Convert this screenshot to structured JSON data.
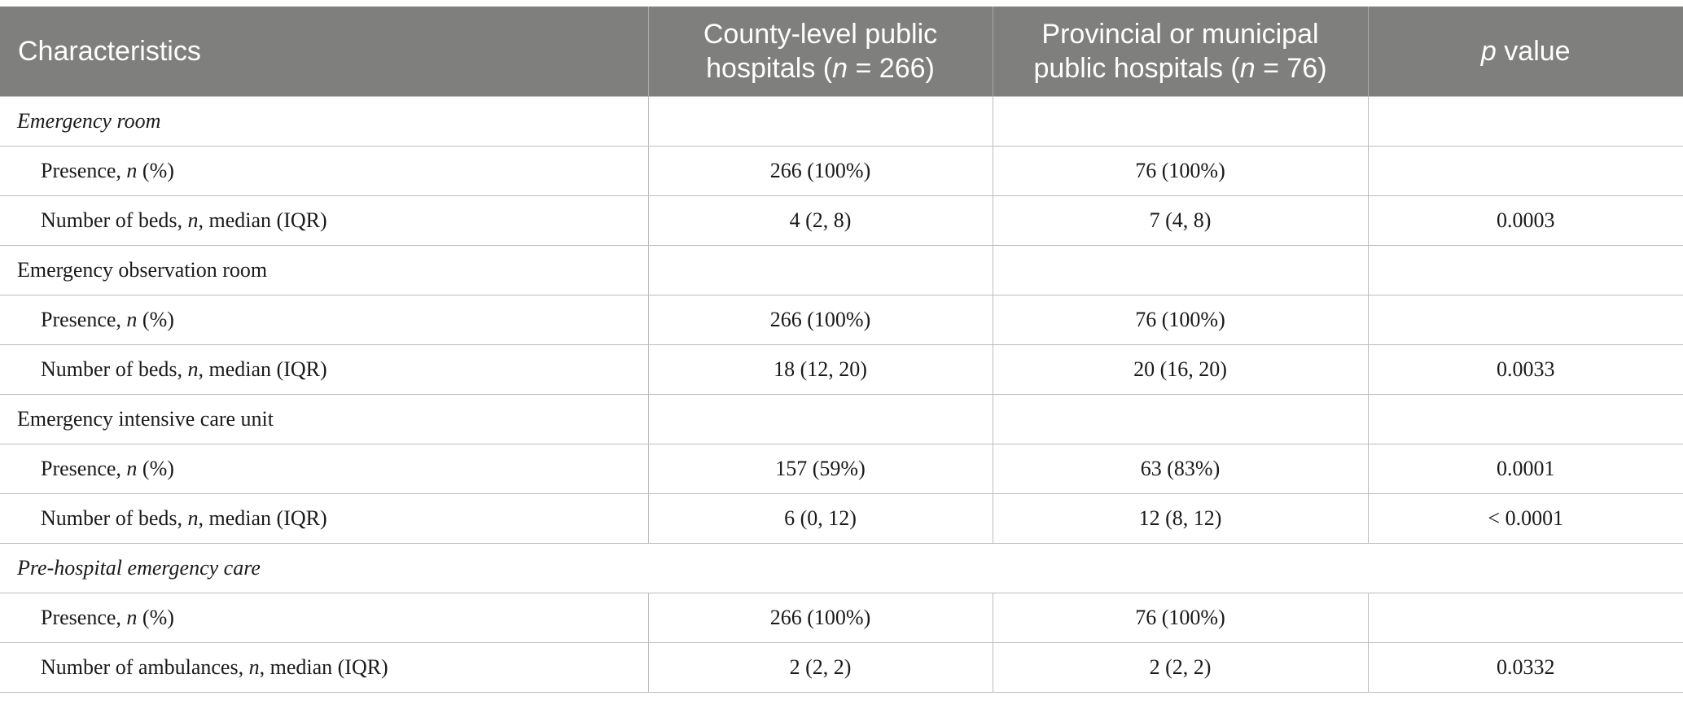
{
  "header": {
    "characteristics": "Characteristics",
    "col2_line1": "County-level public",
    "col2_line2_pre": "hospitals (",
    "col2_n": "n",
    "col2_line2_post": " = 266)",
    "col3_line1": "Provincial or municipal",
    "col3_line2_pre": "public hospitals (",
    "col3_n": "n",
    "col3_line2_post": " = 76)",
    "col4_p": "p",
    "col4_rest": " value"
  },
  "rows": {
    "s1": {
      "label": "Emergency room"
    },
    "s1_presence": {
      "label_pre": "Presence, ",
      "label_n": "n",
      "label_post": " (%)",
      "county": "266 (100%)",
      "provincial": "76 (100%)",
      "p": ""
    },
    "s1_beds": {
      "label_pre": "Number of beds, ",
      "label_n": "n",
      "label_post": ", median (IQR)",
      "county": "4 (2, 8)",
      "provincial": "7 (4, 8)",
      "p": "0.0003"
    },
    "s2": {
      "label": "Emergency observation room"
    },
    "s2_presence": {
      "label_pre": "Presence, ",
      "label_n": "n",
      "label_post": " (%)",
      "county": "266 (100%)",
      "provincial": "76 (100%)",
      "p": ""
    },
    "s2_beds": {
      "label_pre": "Number of beds, ",
      "label_n": "n",
      "label_post": ", median (IQR)",
      "county": "18 (12, 20)",
      "provincial": "20 (16, 20)",
      "p": "0.0033"
    },
    "s3": {
      "label": "Emergency intensive care unit"
    },
    "s3_presence": {
      "label_pre": "Presence, ",
      "label_n": "n",
      "label_post": " (%)",
      "county": "157 (59%)",
      "provincial": "63 (83%)",
      "p": "0.0001"
    },
    "s3_beds": {
      "label_pre": "Number of beds, ",
      "label_n": "n",
      "label_post": ", median (IQR)",
      "county": "6 (0, 12)",
      "provincial": "12 (8, 12)",
      "p": "< 0.0001"
    },
    "s4": {
      "label": "Pre-hospital emergency care"
    },
    "s4_presence": {
      "label_pre": "Presence, ",
      "label_n": "n",
      "label_post": " (%)",
      "county": "266 (100%)",
      "provincial": "76 (100%)",
      "p": ""
    },
    "s4_amb": {
      "label_pre": "Number of ambulances, ",
      "label_n": "n",
      "label_post": ", median (IQR)",
      "county": "2 (2, 2)",
      "provincial": "2 (2, 2)",
      "p": "0.0332"
    }
  },
  "colors": {
    "header_bg": "#7f7f7d",
    "header_text": "#ffffff",
    "rule": "#bdbdbd"
  }
}
